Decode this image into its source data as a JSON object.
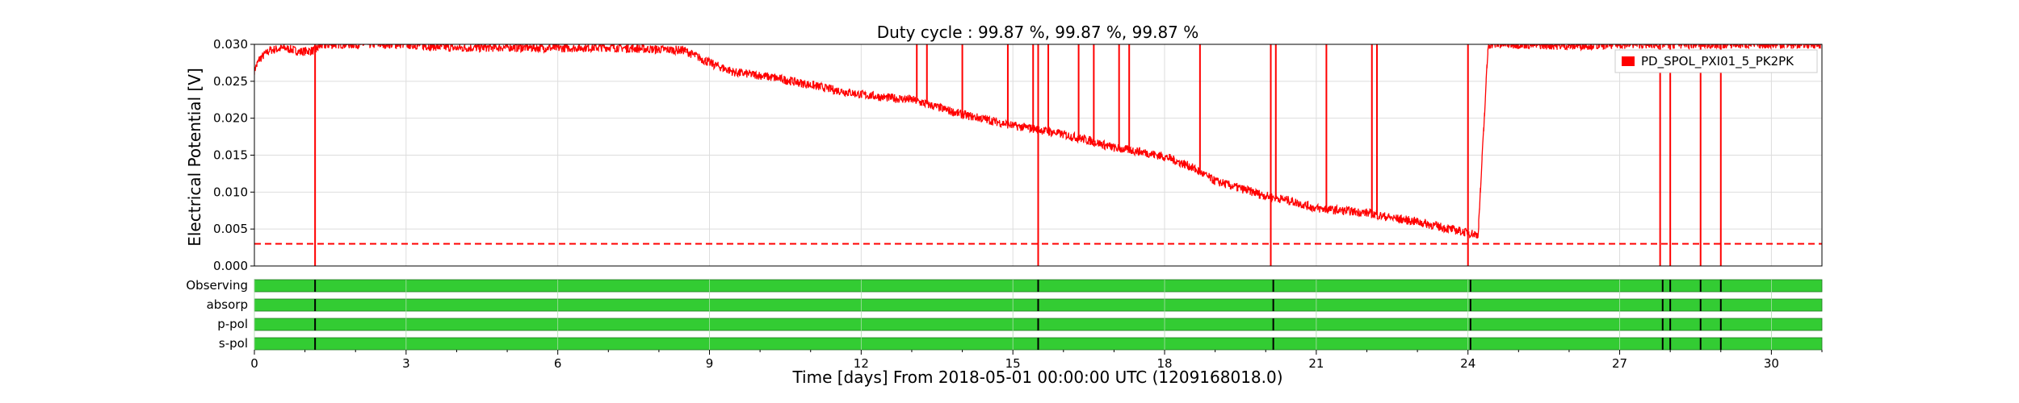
{
  "chart_data": {
    "type": "line",
    "title": "Duty cycle : 99.87 %, 99.87 %, 99.87 %",
    "xlabel": "Time [days] From 2018-05-01 00:00:00 UTC (1209168018.0)",
    "ylabel": "Electrical Potential [V]",
    "xlim": [
      0,
      31
    ],
    "ylim": [
      0,
      0.03
    ],
    "x_ticks": [
      0,
      3,
      6,
      9,
      12,
      15,
      18,
      21,
      24,
      27,
      30
    ],
    "x_tick_labels": [
      "0",
      "3",
      "6",
      "9",
      "12",
      "15",
      "18",
      "21",
      "24",
      "27",
      "30"
    ],
    "y_ticks": [
      0,
      0.005,
      0.01,
      0.015,
      0.02,
      0.025,
      0.03
    ],
    "y_tick_labels": [
      "0.000",
      "0.005",
      "0.010",
      "0.015",
      "0.020",
      "0.025",
      "0.030"
    ],
    "grid": true,
    "legend": {
      "placement": "top-right",
      "entries": [
        "PD_SPOL_PXI01_5_PK2PK"
      ]
    },
    "series": [
      {
        "name": "PD_SPOL_PXI01_5_PK2PK",
        "color": "#ff0000",
        "x": [
          0,
          0.1,
          0.3,
          0.6,
          0.9,
          1.2,
          1.3,
          1.6,
          2,
          3,
          4,
          5,
          6,
          7,
          8,
          8.5,
          9,
          9.5,
          10,
          10.5,
          11,
          11.5,
          12,
          12.5,
          13,
          13.5,
          14,
          14.5,
          15,
          15.5,
          16,
          16.5,
          17,
          17.5,
          18,
          18.5,
          19,
          19.5,
          20,
          20.5,
          21,
          21.5,
          22,
          22.5,
          23,
          23.5,
          24,
          24.2,
          24.4,
          25,
          26,
          27,
          28,
          29,
          30,
          31
        ],
        "y": [
          0.0265,
          0.028,
          0.0292,
          0.0295,
          0.029,
          0.0292,
          0.0298,
          0.03,
          0.03,
          0.03,
          0.0295,
          0.0296,
          0.0295,
          0.0296,
          0.0293,
          0.0292,
          0.0275,
          0.0262,
          0.0258,
          0.0252,
          0.0245,
          0.0238,
          0.0232,
          0.0228,
          0.0225,
          0.0215,
          0.0205,
          0.0198,
          0.019,
          0.0185,
          0.0178,
          0.017,
          0.016,
          0.0155,
          0.0148,
          0.0135,
          0.0115,
          0.0105,
          0.0095,
          0.0088,
          0.0078,
          0.0075,
          0.0072,
          0.0065,
          0.006,
          0.0052,
          0.0045,
          0.0042,
          0.03,
          0.03,
          0.0298,
          0.03,
          0.03,
          0.03,
          0.03,
          0.03
        ]
      }
    ],
    "spikes_up": [
      13.1,
      13.3,
      14,
      14.9,
      15.4,
      15.7,
      16.3,
      16.6,
      17.1,
      17.3,
      18.7,
      20.2,
      21.2,
      22.1,
      22.2
    ],
    "spikes_down": [
      1.2,
      15.5,
      20.1,
      24.0,
      27.8,
      28.0,
      28.6,
      29.0
    ],
    "threshold": {
      "value": 0.003,
      "color": "#ff0000",
      "style": "dashed"
    },
    "segment_bars": {
      "color": "#33cc33",
      "rows": [
        "Observing",
        "absorp",
        "p-pol",
        "s-pol"
      ],
      "gaps": [
        1.2,
        15.5,
        20.15,
        24.05,
        27.85,
        28.0,
        28.6,
        29.0
      ]
    }
  }
}
